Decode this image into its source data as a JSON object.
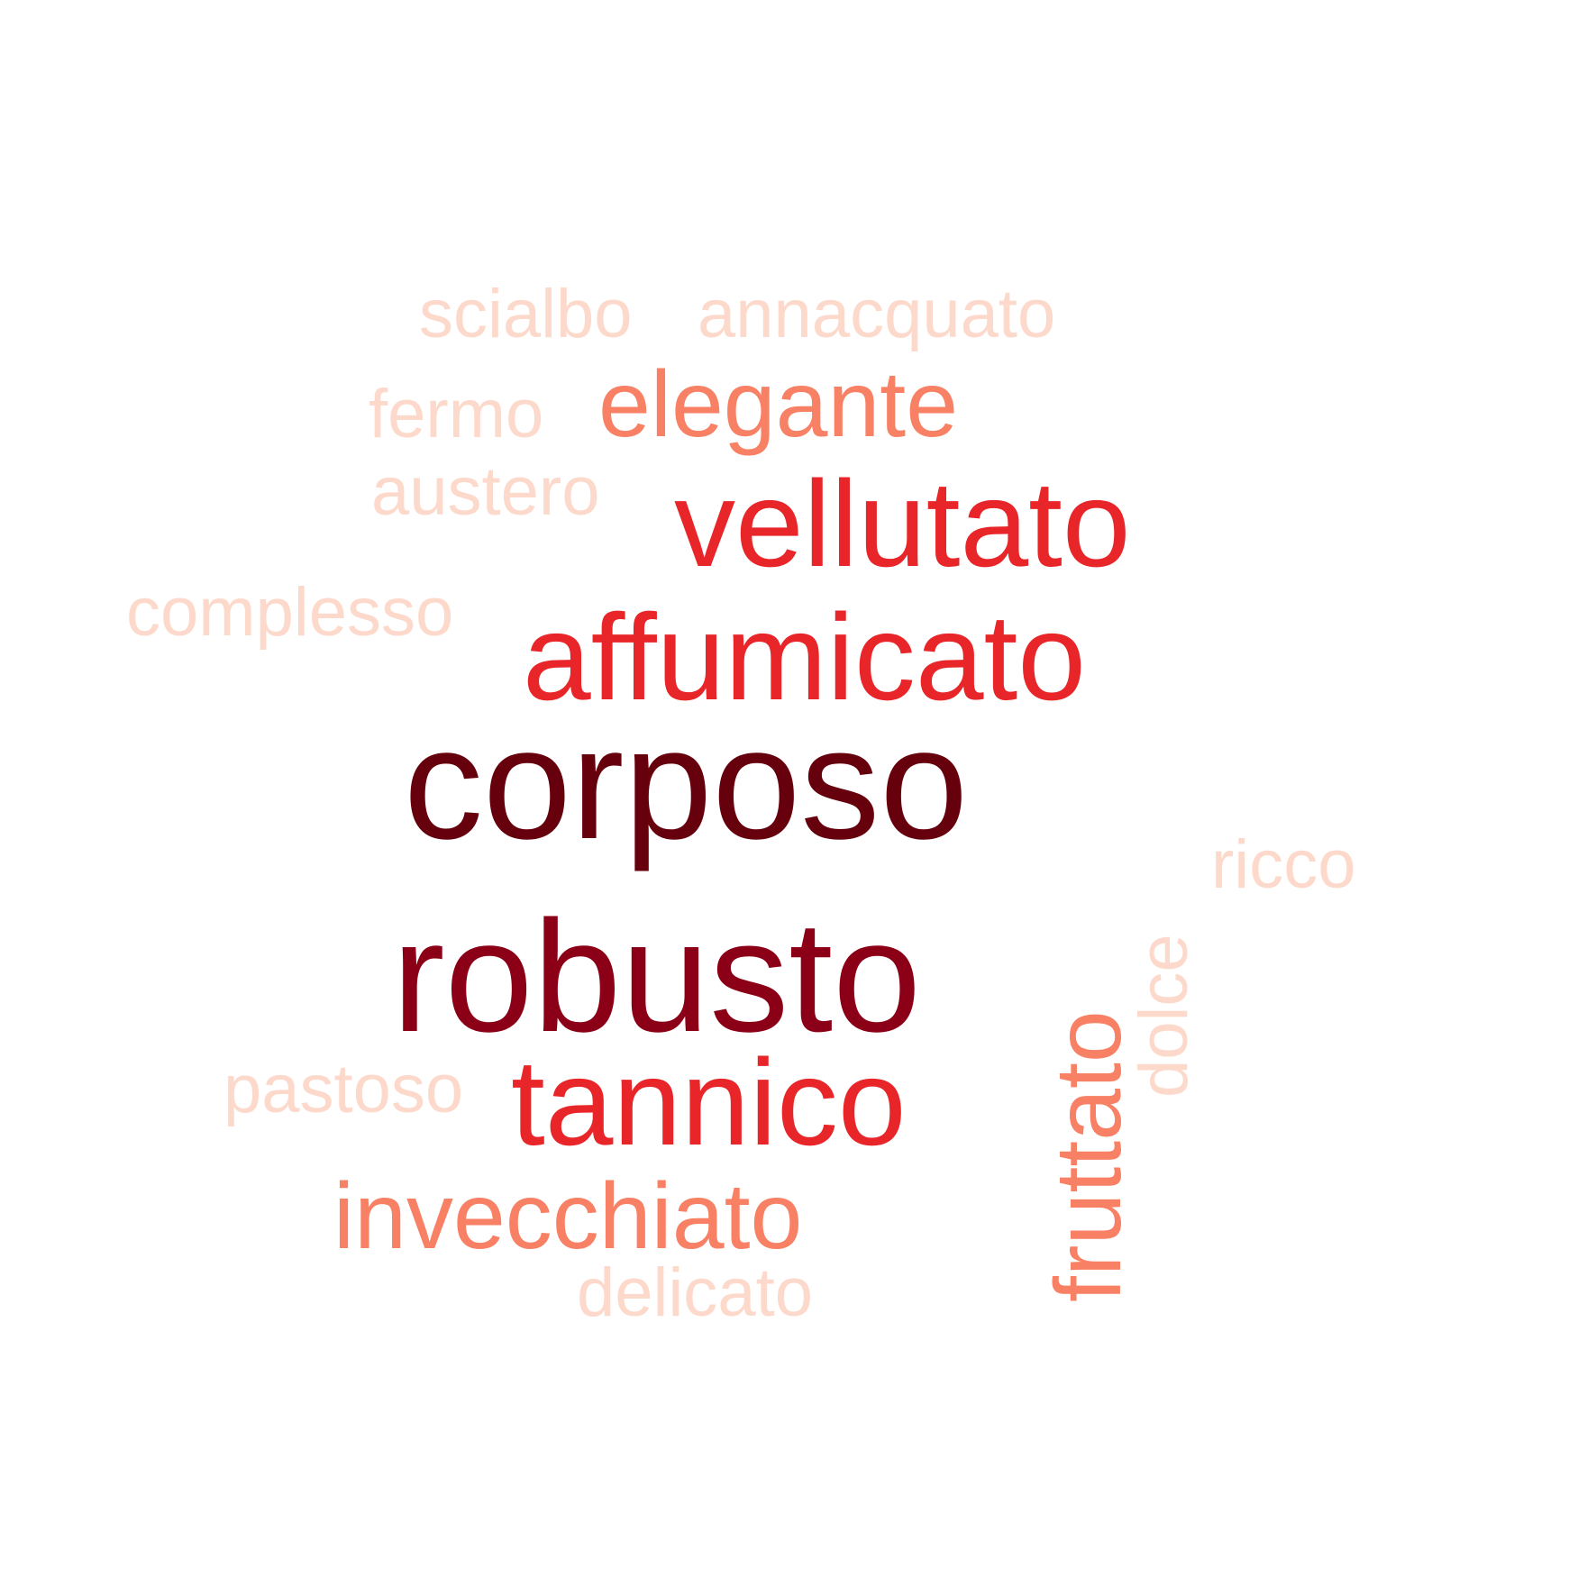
{
  "chart_data": {
    "type": "wordcloud",
    "title": "",
    "words": [
      {
        "text": "corposo",
        "weight": 10,
        "color": "#67000d"
      },
      {
        "text": "robusto",
        "weight": 8,
        "color": "#8b0016"
      },
      {
        "text": "vellutato",
        "weight": 6,
        "color": "#e8262a"
      },
      {
        "text": "affumicato",
        "weight": 6,
        "color": "#e8262a"
      },
      {
        "text": "tannico",
        "weight": 6,
        "color": "#e8262a"
      },
      {
        "text": "elegante",
        "weight": 4,
        "color": "#f88064"
      },
      {
        "text": "invecchiato",
        "weight": 4,
        "color": "#f88064"
      },
      {
        "text": "fruttato",
        "weight": 4,
        "color": "#f88064"
      },
      {
        "text": "scialbo",
        "weight": 2,
        "color": "#fdd9cb"
      },
      {
        "text": "annacquato",
        "weight": 2,
        "color": "#fdd9cb"
      },
      {
        "text": "fermo",
        "weight": 2,
        "color": "#fdd9cb"
      },
      {
        "text": "austero",
        "weight": 2,
        "color": "#fdd9cb"
      },
      {
        "text": "complesso",
        "weight": 2,
        "color": "#fdd9cb"
      },
      {
        "text": "ricco",
        "weight": 2,
        "color": "#fdd9cb"
      },
      {
        "text": "dolce",
        "weight": 2,
        "color": "#fdd9cb"
      },
      {
        "text": "pastoso",
        "weight": 2,
        "color": "#fdd9cb"
      },
      {
        "text": "delicato",
        "weight": 2,
        "color": "#fdd9cb"
      }
    ]
  }
}
